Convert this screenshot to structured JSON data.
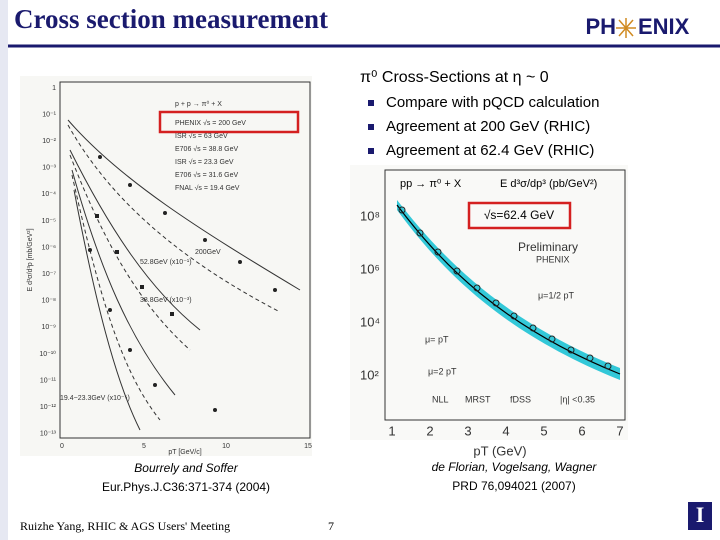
{
  "header": {
    "title": "Cross section measurement",
    "logo": [
      "PH",
      "ENIX"
    ]
  },
  "content": {
    "heading": "π⁰ Cross-Sections at η ~ 0",
    "bullets": [
      "Compare with pQCD calculation",
      "Agreement at 200 GeV (RHIC)",
      "Agreement at 62.4 GeV (RHIC)"
    ]
  },
  "left_plot": {
    "legend": [
      "p + p → π⁰ + X",
      "PHENIX  √s = 200 GeV",
      "ISR  √s = 63 GeV",
      "E706  √s = 38.8 GeV",
      "ISR  √s = 23.3 GeV",
      "E706  √s = 31.6 GeV",
      "FNAL  √s = 19.4 GeV"
    ],
    "curve_labels": [
      "200GeV",
      "52.8GeV (x10⁻¹)",
      "38.8GeV (x10⁻³)",
      "19.4−23.3GeV (x10⁻⁵)"
    ],
    "yticks": [
      "1",
      "10⁻¹",
      "10⁻²",
      "10⁻³",
      "10⁻⁴",
      "10⁻⁵",
      "10⁻⁶",
      "10⁻⁷",
      "10⁻⁸",
      "10⁻⁹",
      "10⁻¹⁰",
      "10⁻¹¹",
      "10⁻¹²",
      "10⁻¹³"
    ],
    "xticks": [
      "0",
      "5",
      "10",
      "15"
    ],
    "xlabel": "pT [GeV/c]",
    "ylabel": "E d³σ/d³p [mb/GeV²]",
    "caption": [
      "Bourrely and Soffer",
      "Eur.Phys.J.C36:371-374 (2004)"
    ]
  },
  "right_plot": {
    "title": "pp → π⁰ + X",
    "ylabel": "E d³σ/dp³ (pb/GeV²)",
    "box": "√s=62.4 GeV",
    "labels": [
      "Preliminary",
      "PHENIX",
      "μ=1/2 pT",
      "μ= pT",
      "μ=2 pT",
      "NLL",
      "MRST",
      "fDSS",
      "|η| <0.35"
    ],
    "yticks": [
      "10⁸",
      "10⁶",
      "10⁴",
      "10²"
    ],
    "xticks": [
      "1",
      "2",
      "3",
      "4",
      "5",
      "6",
      "7"
    ],
    "xlabel": "pT (GeV)",
    "caption": [
      "de Florian, Vogelsang, Wagner",
      "PRD 76,094021 (2007)"
    ]
  },
  "footer": {
    "author": "Ruizhe Yang, RHIC & AGS Users' Meeting",
    "page": "7",
    "icon": "I"
  }
}
